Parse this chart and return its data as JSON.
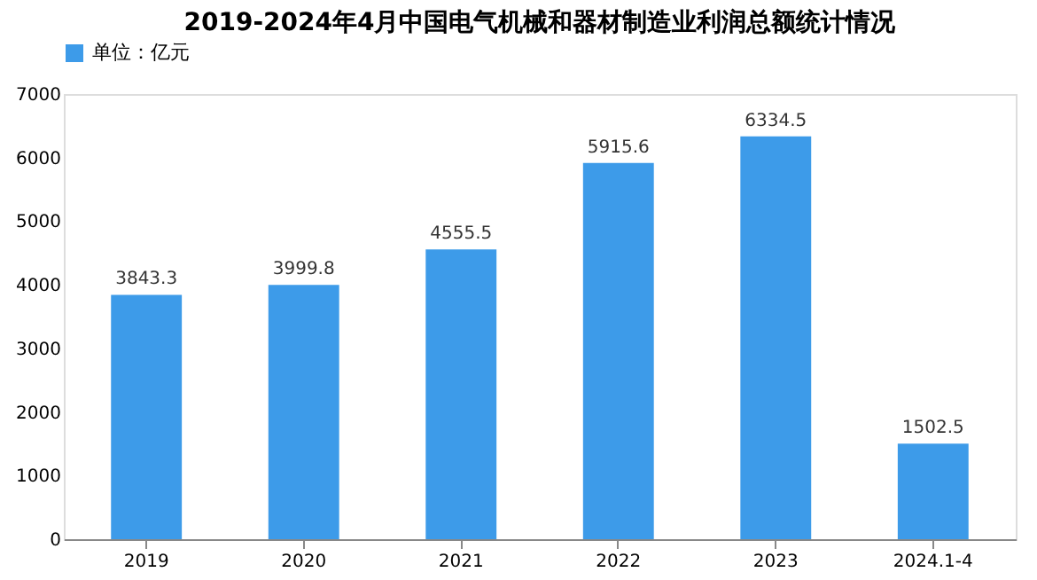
{
  "chart_data": {
    "type": "bar",
    "title": "2019-2024年4月中国电气机械和器材制造业利润总额统计情况",
    "categories": [
      "2019",
      "2020",
      "2021",
      "2022",
      "2023",
      "2024.1-4"
    ],
    "series": [
      {
        "name": "单位：亿元",
        "color": "#3d9be9",
        "values": [
          3843.3,
          3999.8,
          4555.5,
          5915.6,
          6334.5,
          1502.5
        ]
      }
    ],
    "ylim": [
      0,
      7000
    ],
    "yticks": [
      0,
      1000,
      2000,
      3000,
      4000,
      5000,
      6000,
      7000
    ],
    "data_labels": true,
    "legend": "top",
    "grid": false
  }
}
